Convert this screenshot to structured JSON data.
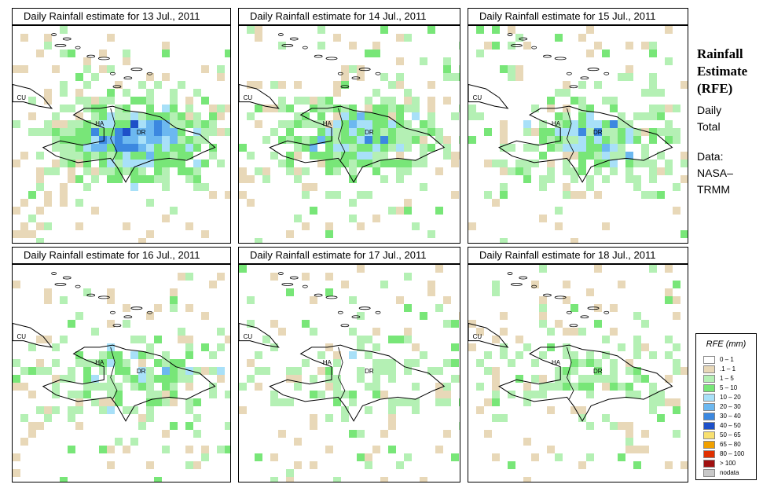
{
  "panels": [
    {
      "title": "Daily Rainfall estimate for  13 Jul., 2011",
      "seed": 13,
      "intensity": 1.0
    },
    {
      "title": "Daily Rainfall estimate for  14 Jul., 2011",
      "seed": 14,
      "intensity": 0.8
    },
    {
      "title": "Daily Rainfall estimate for  15 Jul., 2011",
      "seed": 15,
      "intensity": 0.7
    },
    {
      "title": "Daily Rainfall estimate for  16 Jul., 2011",
      "seed": 16,
      "intensity": 0.5
    },
    {
      "title": "Daily Rainfall estimate for  17 Jul., 2011",
      "seed": 17,
      "intensity": 0.3
    },
    {
      "title": "Daily Rainfall estimate for  18 Jul., 2011",
      "seed": 18,
      "intensity": 0.3
    }
  ],
  "labels": {
    "cuba": "CU",
    "haiti": "HA",
    "dr": "DR"
  },
  "side": {
    "title_line1": "Rainfall",
    "title_line2": "Estimate",
    "title_line3": "(RFE)",
    "daily": "Daily",
    "total": "Total",
    "data_label": "Data:",
    "source1": "NASA–",
    "source2": "TRMM"
  },
  "legend": {
    "title": "RFE (mm)",
    "classes": [
      {
        "label": "0 – 1",
        "color": "#ffffff"
      },
      {
        "label": ".1 – 1",
        "color": "#e8d8b8"
      },
      {
        "label": "1 – 5",
        "color": "#b4f0b4"
      },
      {
        "label": "5 – 10",
        "color": "#78e678"
      },
      {
        "label": "10 – 20",
        "color": "#a8e0f8"
      },
      {
        "label": "20 – 30",
        "color": "#6cb8f0"
      },
      {
        "label": "30 – 40",
        "color": "#3c88e0"
      },
      {
        "label": "40 – 50",
        "color": "#1e50c8"
      },
      {
        "label": "50 – 65",
        "color": "#f8e070"
      },
      {
        "label": "65 – 80",
        "color": "#f0a000"
      },
      {
        "label": "80 – 100",
        "color": "#e03000"
      },
      {
        "label": "> 100",
        "color": "#a01010"
      },
      {
        "label": "nodata",
        "color": "#c8c8c8"
      }
    ]
  }
}
